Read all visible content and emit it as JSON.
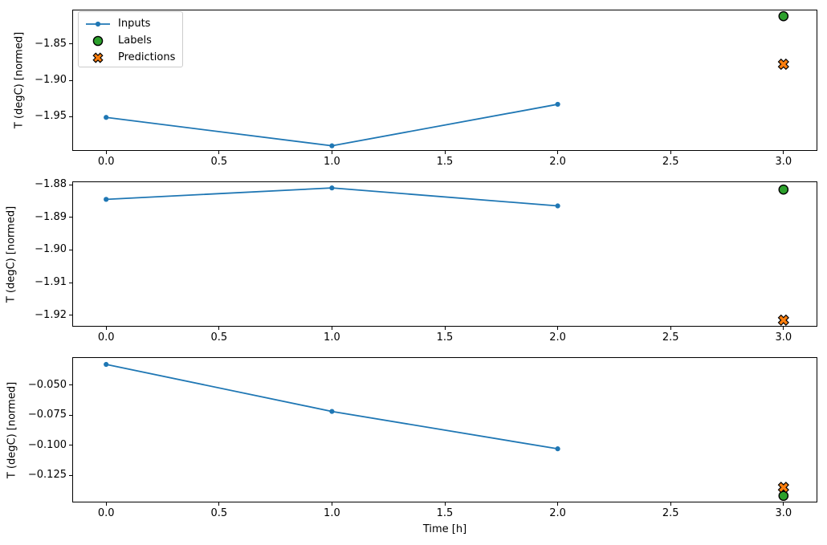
{
  "figure": {
    "xlabel": "Time [h]",
    "background": "#ffffff",
    "spine_color": "#000000",
    "legend": {
      "position": "upper-left",
      "items": [
        {
          "label": "Inputs",
          "marker": "line-with-dot",
          "color": "#1f77b4"
        },
        {
          "label": "Labels",
          "marker": "filled-circle",
          "color": "#2ca02c",
          "edge_color": "#000000"
        },
        {
          "label": "Predictions",
          "marker": "filled-x",
          "color": "#ff7f0e",
          "edge_color": "#000000"
        }
      ]
    }
  },
  "chart_data": [
    {
      "type": "line",
      "title": "",
      "ylabel": "T (degC) [normed]",
      "xlim": [
        -0.15,
        3.15
      ],
      "ylim": [
        -1.997,
        -1.803
      ],
      "grid": false,
      "xticks": [
        {
          "v": 0.0,
          "label": "0.0"
        },
        {
          "v": 0.5,
          "label": "0.5"
        },
        {
          "v": 1.0,
          "label": "1.0"
        },
        {
          "v": 1.5,
          "label": "1.5"
        },
        {
          "v": 2.0,
          "label": "2.0"
        },
        {
          "v": 2.5,
          "label": "2.5"
        },
        {
          "v": 3.0,
          "label": "3.0"
        }
      ],
      "yticks": [
        {
          "v": -1.85,
          "label": "−1.85"
        },
        {
          "v": -1.9,
          "label": "−1.90"
        },
        {
          "v": -1.95,
          "label": "−1.95"
        }
      ],
      "series": [
        {
          "name": "Inputs",
          "type": "line",
          "color": "#1f77b4",
          "x": [
            0,
            1,
            2
          ],
          "y": [
            -1.951,
            -1.99,
            -1.933
          ]
        },
        {
          "name": "Labels",
          "type": "scatter",
          "marker": "filled-circle",
          "color": "#2ca02c",
          "edge_color": "#000000",
          "x": [
            3
          ],
          "y": [
            -1.812
          ]
        },
        {
          "name": "Predictions",
          "type": "scatter",
          "marker": "filled-x",
          "color": "#ff7f0e",
          "edge_color": "#000000",
          "x": [
            3
          ],
          "y": [
            -1.878
          ]
        }
      ]
    },
    {
      "type": "line",
      "title": "",
      "ylabel": "T (degC) [normed]",
      "xlim": [
        -0.15,
        3.15
      ],
      "ylim": [
        -1.9235,
        -1.879
      ],
      "grid": false,
      "xticks": [
        {
          "v": 0.0,
          "label": "0.0"
        },
        {
          "v": 0.5,
          "label": "0.5"
        },
        {
          "v": 1.0,
          "label": "1.0"
        },
        {
          "v": 1.5,
          "label": "1.5"
        },
        {
          "v": 2.0,
          "label": "2.0"
        },
        {
          "v": 2.5,
          "label": "2.5"
        },
        {
          "v": 3.0,
          "label": "3.0"
        }
      ],
      "yticks": [
        {
          "v": -1.88,
          "label": "−1.88"
        },
        {
          "v": -1.89,
          "label": "−1.89"
        },
        {
          "v": -1.9,
          "label": "−1.90"
        },
        {
          "v": -1.91,
          "label": "−1.91"
        },
        {
          "v": -1.92,
          "label": "−1.92"
        }
      ],
      "series": [
        {
          "name": "Inputs",
          "type": "line",
          "color": "#1f77b4",
          "x": [
            0,
            1,
            2
          ],
          "y": [
            -1.8845,
            -1.881,
            -1.8865
          ]
        },
        {
          "name": "Labels",
          "type": "scatter",
          "marker": "filled-circle",
          "color": "#2ca02c",
          "edge_color": "#000000",
          "x": [
            3
          ],
          "y": [
            -1.8815
          ]
        },
        {
          "name": "Predictions",
          "type": "scatter",
          "marker": "filled-x",
          "color": "#ff7f0e",
          "edge_color": "#000000",
          "x": [
            3
          ],
          "y": [
            -1.9215
          ]
        }
      ]
    },
    {
      "type": "line",
      "title": "",
      "ylabel": "T (degC) [normed]",
      "xlim": [
        -0.15,
        3.15
      ],
      "ylim": [
        -0.1475,
        -0.027
      ],
      "grid": false,
      "xticks": [
        {
          "v": 0.0,
          "label": "0.0"
        },
        {
          "v": 0.5,
          "label": "0.5"
        },
        {
          "v": 1.0,
          "label": "1.0"
        },
        {
          "v": 1.5,
          "label": "1.5"
        },
        {
          "v": 2.0,
          "label": "2.0"
        },
        {
          "v": 2.5,
          "label": "2.5"
        },
        {
          "v": 3.0,
          "label": "3.0"
        }
      ],
      "yticks": [
        {
          "v": -0.05,
          "label": "−0.050"
        },
        {
          "v": -0.075,
          "label": "−0.075"
        },
        {
          "v": -0.1,
          "label": "−0.100"
        },
        {
          "v": -0.125,
          "label": "−0.125"
        }
      ],
      "series": [
        {
          "name": "Inputs",
          "type": "line",
          "color": "#1f77b4",
          "x": [
            0,
            1,
            2
          ],
          "y": [
            -0.033,
            -0.072,
            -0.103
          ]
        },
        {
          "name": "Labels",
          "type": "scatter",
          "marker": "filled-circle",
          "color": "#2ca02c",
          "edge_color": "#000000",
          "x": [
            3
          ],
          "y": [
            -0.142
          ]
        },
        {
          "name": "Predictions",
          "type": "scatter",
          "marker": "filled-x",
          "color": "#ff7f0e",
          "edge_color": "#000000",
          "x": [
            3
          ],
          "y": [
            -0.135
          ]
        }
      ]
    }
  ]
}
